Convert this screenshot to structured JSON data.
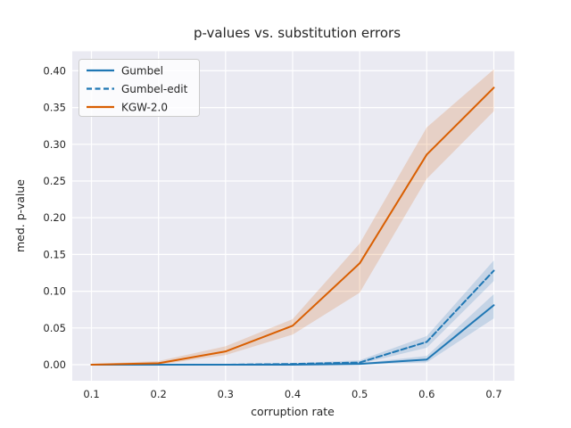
{
  "chart_data": {
    "type": "line",
    "title": "p-values vs. substitution errors",
    "xlabel": "corruption rate",
    "ylabel": "med. p-value",
    "x": [
      0.1,
      0.2,
      0.3,
      0.4,
      0.5,
      0.6,
      0.7
    ],
    "x_tick_labels": [
      "0.1",
      "0.2",
      "0.3",
      "0.4",
      "0.5",
      "0.6",
      "0.7"
    ],
    "y_ticks": [
      0.0,
      0.05,
      0.1,
      0.15,
      0.2,
      0.25,
      0.3,
      0.35,
      0.4
    ],
    "y_tick_labels": [
      "0.00",
      "0.05",
      "0.10",
      "0.15",
      "0.20",
      "0.25",
      "0.30",
      "0.35",
      "0.40"
    ],
    "xlim": [
      0.0715,
      0.7315
    ],
    "ylim": [
      -0.0235,
      0.425
    ],
    "grid": true,
    "legend_position": "upper-left",
    "band_opacity": 0.18,
    "series": [
      {
        "name": "Gumbel",
        "color": "#1f77b4",
        "style": "solid",
        "values": [
          0.0,
          0.0,
          0.0,
          0.0,
          0.001,
          0.007,
          0.081
        ],
        "band_low": [
          0.0,
          0.0,
          0.0,
          0.0,
          0.0,
          0.003,
          0.063
        ],
        "band_high": [
          0.001,
          0.001,
          0.001,
          0.001,
          0.002,
          0.012,
          0.096
        ]
      },
      {
        "name": "Gumbel-edit",
        "color": "#1f77b4",
        "style": "dashed",
        "values": [
          0.0,
          0.0,
          0.0,
          0.001,
          0.003,
          0.031,
          0.128
        ],
        "band_low": [
          0.0,
          0.0,
          0.0,
          0.0,
          0.001,
          0.023,
          0.114
        ],
        "band_high": [
          0.001,
          0.001,
          0.001,
          0.002,
          0.006,
          0.039,
          0.142
        ]
      },
      {
        "name": "KGW-2.0",
        "color": "#d95f02",
        "style": "solid",
        "values": [
          0.0,
          0.002,
          0.018,
          0.053,
          0.138,
          0.286,
          0.377
        ],
        "band_low": [
          0.0,
          0.0,
          0.013,
          0.041,
          0.098,
          0.253,
          0.345
        ],
        "band_high": [
          0.001,
          0.005,
          0.025,
          0.062,
          0.165,
          0.323,
          0.402
        ]
      }
    ]
  },
  "style": {
    "plot_bg": "#eaeaf2",
    "grid_color": "#ffffff",
    "text_color": "#262626",
    "legend_bg": "#ffffff",
    "legend_border": "#cccccc",
    "accent_blue": "#1f77b4",
    "accent_orange": "#d95f02"
  }
}
